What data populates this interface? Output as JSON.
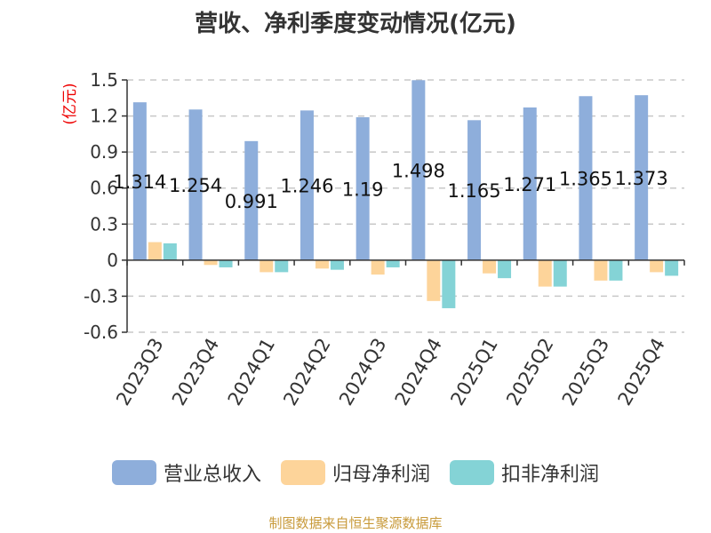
{
  "chart_data": {
    "type": "bar",
    "title": "营收、净利季度变动情况(亿元)",
    "ylabel": "(亿元)",
    "xlabel": "",
    "ylim": [
      -0.6,
      1.5
    ],
    "yticks": [
      1.5,
      1.2,
      0.9,
      0.6,
      0.3,
      0,
      -0.3,
      -0.6
    ],
    "ytick_labels": [
      "1.5",
      "1.2",
      "0.9",
      "0.6",
      "0.3",
      "0",
      "-0.3",
      "-0.6"
    ],
    "grid": true,
    "legend_position": "bottom",
    "categories": [
      "2023Q3",
      "2023Q4",
      "2024Q1",
      "2024Q2",
      "2024Q3",
      "2024Q4",
      "2025Q1",
      "2025Q2",
      "2025Q3",
      "2025Q4"
    ],
    "series": [
      {
        "name": "营业总收入",
        "color": "#8eaedb",
        "values": [
          1.314,
          1.254,
          0.991,
          1.246,
          1.19,
          1.498,
          1.165,
          1.271,
          1.365,
          1.373
        ],
        "data_labels": [
          "1.314",
          "1.254",
          "0.991",
          "1.246",
          "1.19",
          "1.498",
          "1.165",
          "1.271",
          "1.365",
          "1.373"
        ]
      },
      {
        "name": "归母净利润",
        "color": "#fdd49a",
        "values": [
          0.15,
          -0.04,
          -0.1,
          -0.07,
          -0.12,
          -0.34,
          -0.11,
          -0.22,
          -0.17,
          -0.1
        ]
      },
      {
        "name": "扣非净利润",
        "color": "#84d3d6",
        "values": [
          0.14,
          -0.06,
          -0.1,
          -0.08,
          -0.06,
          -0.4,
          -0.15,
          -0.22,
          -0.17,
          -0.13
        ]
      }
    ]
  },
  "source_note": "制图数据来自恒生聚源数据库"
}
